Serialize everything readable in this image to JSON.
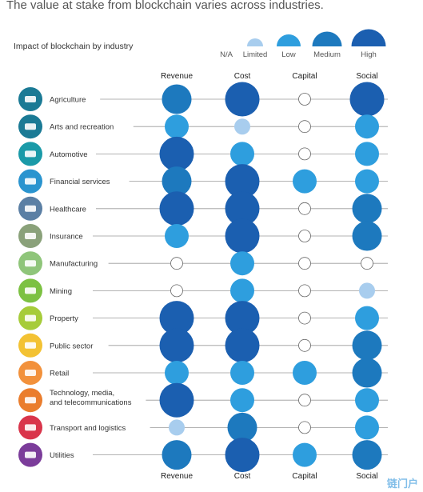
{
  "headline": "The value at stake from blockchain varies across industries.",
  "watermark": "链门户",
  "chart_data": {
    "type": "bubble-matrix",
    "title": "Impact of blockchain by industry",
    "columns": [
      "Revenue",
      "Cost",
      "Capital",
      "Social"
    ],
    "levels": [
      "N/A",
      "Limited",
      "Low",
      "Medium",
      "High"
    ],
    "level_colors": {
      "N/A": "#ffffff",
      "Limited": "#a8cdee",
      "Low": "#2e9ede",
      "Medium": "#1d79be",
      "High": "#1b5fb0"
    },
    "rows": [
      {
        "industry": "Agriculture",
        "icon": "cow-icon",
        "icon_color": "#1a7a95",
        "values": [
          "Medium",
          "High",
          "N/A",
          "High"
        ]
      },
      {
        "industry": "Arts and recreation",
        "icon": "director-chair-icon",
        "icon_color": "#1a7a95",
        "values": [
          "Low",
          "Limited",
          "N/A",
          "Low"
        ]
      },
      {
        "industry": "Automotive",
        "icon": "car-axle-icon",
        "icon_color": "#1a9aa8",
        "values": [
          "High",
          "Low",
          "N/A",
          "Low"
        ]
      },
      {
        "industry": "Financial services",
        "icon": "bank-icon",
        "icon_color": "#2a94cf",
        "values": [
          "Medium",
          "High",
          "Low",
          "Low"
        ]
      },
      {
        "industry": "Healthcare",
        "icon": "health-icon",
        "icon_color": "#5b7fa4",
        "values": [
          "High",
          "High",
          "N/A",
          "Medium"
        ]
      },
      {
        "industry": "Insurance",
        "icon": "document-icon",
        "icon_color": "#8aa17a",
        "values": [
          "Low",
          "High",
          "N/A",
          "Medium"
        ]
      },
      {
        "industry": "Manufacturing",
        "icon": "robot-arm-icon",
        "icon_color": "#8fc57a",
        "values": [
          "N/A",
          "Low",
          "N/A",
          "N/A"
        ]
      },
      {
        "industry": "Mining",
        "icon": "helmet-icon",
        "icon_color": "#7cc142",
        "values": [
          "N/A",
          "Low",
          "N/A",
          "Limited"
        ]
      },
      {
        "industry": "Property",
        "icon": "building-icon",
        "icon_color": "#a6cc3a",
        "values": [
          "High",
          "High",
          "N/A",
          "Low"
        ]
      },
      {
        "industry": "Public sector",
        "icon": "handshake-icon",
        "icon_color": "#f3c233",
        "values": [
          "High",
          "High",
          "N/A",
          "Medium"
        ]
      },
      {
        "industry": "Retail",
        "icon": "cart-icon",
        "icon_color": "#f2913b",
        "values": [
          "Low",
          "Low",
          "Low",
          "Medium"
        ]
      },
      {
        "industry": "Technology, media, and telecommunications",
        "icon": "media-icon",
        "icon_color": "#ea7d2d",
        "label_lines": [
          "Technology, media,",
          "and telecommunications"
        ],
        "values": [
          "High",
          "Low",
          "N/A",
          "Low"
        ]
      },
      {
        "industry": "Transport and logistics",
        "icon": "truck-icon",
        "icon_color": "#d9354b",
        "values": [
          "Limited",
          "Medium",
          "N/A",
          "Low"
        ]
      },
      {
        "industry": "Utilities",
        "icon": "lightning-icon",
        "icon_color": "#7b3c9a",
        "values": [
          "Medium",
          "High",
          "Low",
          "Medium"
        ]
      }
    ]
  }
}
